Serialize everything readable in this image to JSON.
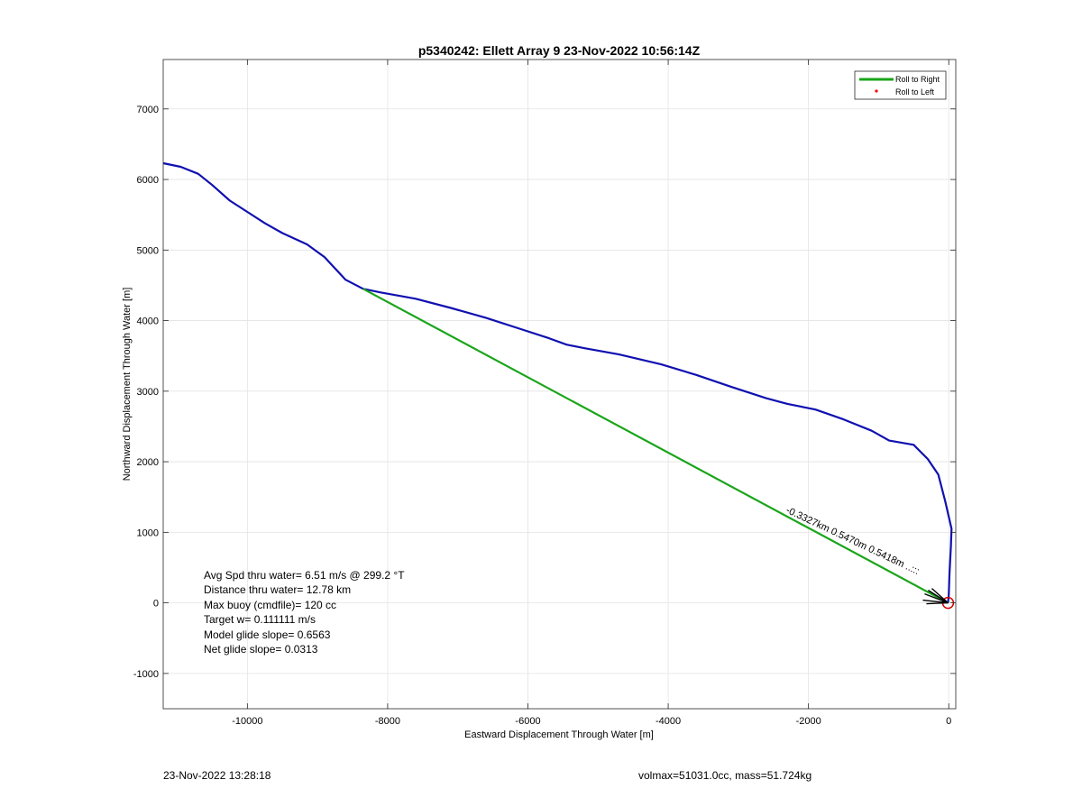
{
  "chart_data": {
    "type": "line",
    "title": "p5340242: Ellett Array 9 23-Nov-2022 10:56:14Z",
    "xlabel": "Eastward Displacement Through Water [m]",
    "ylabel": "Northward Displacement Through Water [m]",
    "xlim": [
      -11200,
      100
    ],
    "ylim": [
      -1500,
      7700
    ],
    "xticks": [
      -10000,
      -8000,
      -6000,
      -4000,
      -2000,
      0
    ],
    "yticks": [
      -1000,
      0,
      1000,
      2000,
      3000,
      4000,
      5000,
      6000,
      7000
    ],
    "xtick_labels": [
      "-10000",
      "-8000",
      "-6000",
      "-4000",
      "-2000",
      "0"
    ],
    "ytick_labels": [
      "-1000",
      "0",
      "1000",
      "2000",
      "3000",
      "4000",
      "5000",
      "6000",
      "7000"
    ],
    "grid": true,
    "legend_position": "top-right",
    "legend": [
      {
        "name": "Roll to Right",
        "color": "#1aa51a"
      },
      {
        "name": "Roll to Left",
        "color": "#ff0000"
      }
    ],
    "series": [
      {
        "name": "",
        "color": "#1010b0",
        "points": [
          [
            -11200,
            6230
          ],
          [
            -10950,
            6180
          ],
          [
            -10700,
            6080
          ],
          [
            -10500,
            5920
          ],
          [
            -10250,
            5700
          ],
          [
            -10000,
            5540
          ],
          [
            -9750,
            5380
          ],
          [
            -9500,
            5240
          ],
          [
            -9150,
            5080
          ],
          [
            -8900,
            4900
          ],
          [
            -8600,
            4580
          ],
          [
            -8350,
            4450
          ],
          [
            -8100,
            4400
          ],
          [
            -7600,
            4310
          ],
          [
            -7100,
            4180
          ],
          [
            -6600,
            4040
          ],
          [
            -6100,
            3880
          ],
          [
            -5700,
            3750
          ],
          [
            -5450,
            3660
          ],
          [
            -5200,
            3610
          ],
          [
            -4700,
            3520
          ],
          [
            -4100,
            3380
          ],
          [
            -3600,
            3230
          ],
          [
            -3100,
            3060
          ],
          [
            -2600,
            2900
          ],
          [
            -2300,
            2820
          ],
          [
            -1900,
            2740
          ],
          [
            -1500,
            2600
          ],
          [
            -1100,
            2440
          ],
          [
            -850,
            2300
          ],
          [
            -500,
            2240
          ],
          [
            -300,
            2040
          ],
          [
            -150,
            1820
          ],
          [
            -50,
            1440
          ],
          [
            40,
            1050
          ],
          [
            30,
            800
          ],
          [
            10,
            400
          ],
          [
            0,
            100
          ],
          [
            -10,
            0
          ]
        ]
      },
      {
        "name": "Roll to Right",
        "color": "#1aa51a",
        "points": [
          [
            -8350,
            4450
          ],
          [
            -10,
            0
          ]
        ]
      }
    ],
    "annotations": {
      "rotated_label": "-0.3327km  0.5470m  0.5418m  ..:::",
      "marker_at": [
        -10,
        0
      ],
      "stats_lines": [
        "Avg Spd thru water=  6.51 m/s @ 299.2 °T",
        "Distance thru water= 12.78 km",
        "Max buoy (cmdfile)= 120 cc",
        "Target w= 0.111111 m/s",
        "Model glide slope= 0.6563",
        "Net glide slope= 0.0313"
      ]
    }
  },
  "footer": {
    "left": "23-Nov-2022 13:28:18",
    "right": "volmax=51031.0cc, mass=51.724kg"
  }
}
